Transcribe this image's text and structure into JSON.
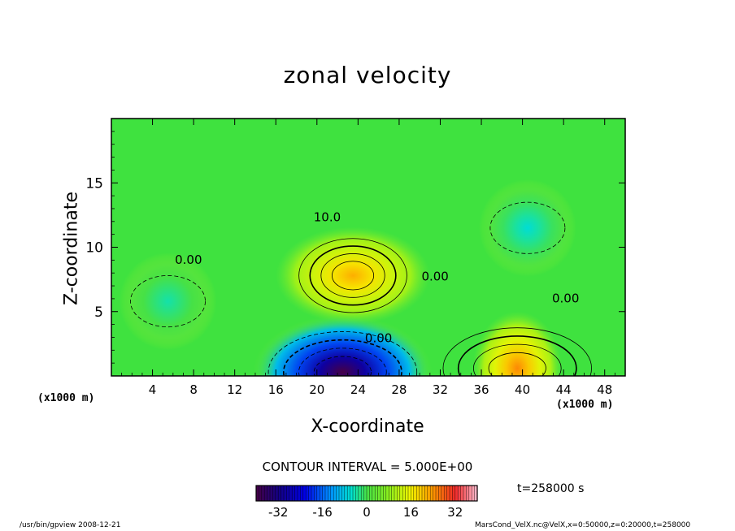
{
  "chart_data": {
    "type": "heatmap",
    "title": "zonal velocity",
    "xlabel": "X-coordinate",
    "ylabel": "Z-coordinate",
    "x_unit": "(x1000 m)",
    "xlim": [
      0,
      50
    ],
    "ylim": [
      0,
      20
    ],
    "x_ticks": [
      4,
      8,
      12,
      16,
      20,
      24,
      28,
      32,
      36,
      40,
      44,
      48
    ],
    "y_ticks": [
      5,
      10,
      15
    ],
    "contour_interval_text": "CONTOUR INTERVAL = 5.000E+00",
    "contour_labels": [
      {
        "text": "10.0",
        "x": 21,
        "y": 12.3
      },
      {
        "text": "0.00",
        "x": 7.5,
        "y": 9.0
      },
      {
        "text": "0.00",
        "x": 31.5,
        "y": 7.7
      },
      {
        "text": "0.00",
        "x": 44.2,
        "y": 6.0
      },
      {
        "text": "0.00",
        "x": 26,
        "y": 2.9
      }
    ],
    "colorbar": {
      "range": [
        -40,
        40
      ],
      "ticks": [
        -32,
        -16,
        0,
        16,
        32
      ],
      "tick_labels": [
        "-32",
        "-16",
        "0",
        "16",
        "32"
      ]
    },
    "field_features": [
      {
        "kind": "max",
        "x": 23.5,
        "y": 7.8,
        "value": 22
      },
      {
        "kind": "min",
        "x": 22.5,
        "y": 0.3,
        "value": -40
      },
      {
        "kind": "max",
        "x": 39.5,
        "y": 0.6,
        "value": 25
      },
      {
        "kind": "min",
        "x": 40.5,
        "y": 11.5,
        "value": -6
      },
      {
        "kind": "min",
        "x": 5.5,
        "y": 5.8,
        "value": -4
      }
    ]
  },
  "time_label": "t=258000 s",
  "footer": {
    "left": "/usr/bin/gpview   2008-12-21",
    "right": "MarsCond_VelX.nc@VelX,x=0:50000,z=0:20000,t=258000"
  },
  "colors": {
    "background_field": "#3fe23f",
    "frame": "#000000"
  }
}
